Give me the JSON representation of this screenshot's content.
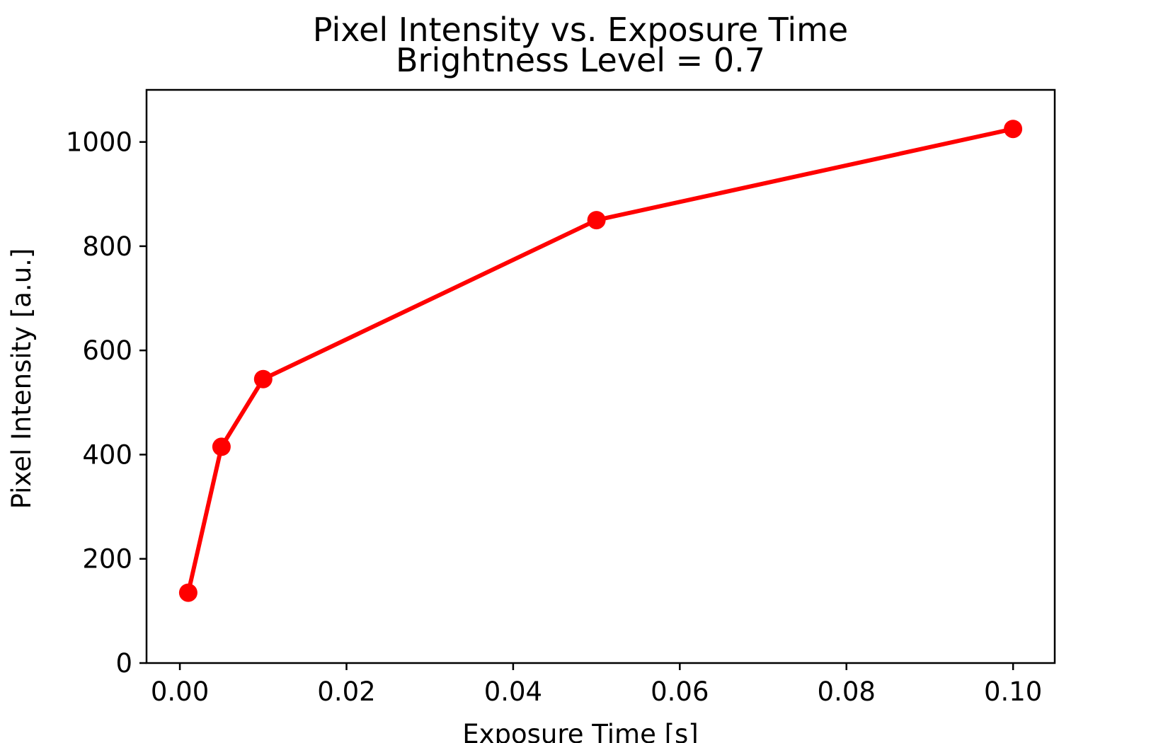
{
  "chart_data": {
    "type": "line",
    "title": "Pixel Intensity vs. Exposure Time",
    "subtitle": "Brightness Level = 0.7",
    "xlabel": "Exposure Time [s]",
    "ylabel": "Pixel Intensity [a.u.]",
    "xlim": [
      -0.004,
      0.105
    ],
    "ylim": [
      0,
      1100
    ],
    "xticks": [
      0.0,
      0.02,
      0.04,
      0.06,
      0.08,
      0.1
    ],
    "xtick_labels": [
      "0.00",
      "0.02",
      "0.04",
      "0.06",
      "0.08",
      "0.10"
    ],
    "yticks": [
      0,
      200,
      400,
      600,
      800,
      1000
    ],
    "ytick_labels": [
      "0",
      "200",
      "400",
      "600",
      "800",
      "1000"
    ],
    "grid": false,
    "series": [
      {
        "color": "#ff0000",
        "marker": "circle",
        "x": [
          0.001,
          0.005,
          0.01,
          0.05,
          0.1
        ],
        "y": [
          135,
          415,
          545,
          850,
          1025
        ]
      }
    ]
  }
}
